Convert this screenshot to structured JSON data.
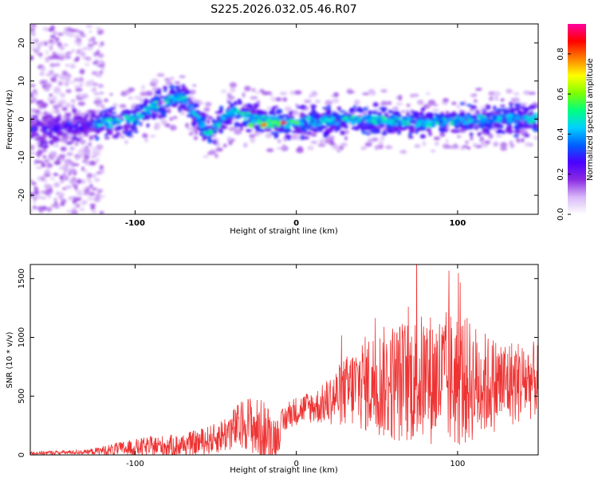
{
  "title": "S225.2026.032.05.46.R07",
  "chart_data": [
    {
      "type": "heatmap",
      "xlabel": "Height of straight line (km)",
      "ylabel": "Frequency (Hz)",
      "xlim": [
        -165,
        150
      ],
      "ylim": [
        -25,
        25
      ],
      "x_ticks": [
        -100,
        0,
        100
      ],
      "y_ticks": [
        20,
        10,
        0,
        -10,
        -20
      ],
      "colorbar": {
        "label": "Normalized spectral amplitude",
        "range": [
          0,
          0.95
        ],
        "ticks": [
          "0.0",
          "0.2",
          "0.4",
          "0.6",
          "0.8"
        ],
        "colors": [
          "#ffffff",
          "#d8b8f8",
          "#8a2be2",
          "#4b00ff",
          "#0060ff",
          "#00d0ff",
          "#00ff80",
          "#80ff00",
          "#ffff00",
          "#ff8000",
          "#ff0000",
          "#ff00a0"
        ]
      },
      "band_center_hz": [
        {
          "x": -160,
          "f": -3
        },
        {
          "x": -120,
          "f": -1
        },
        {
          "x": -100,
          "f": 0
        },
        {
          "x": -85,
          "f": 4
        },
        {
          "x": -70,
          "f": 6
        },
        {
          "x": -55,
          "f": -4
        },
        {
          "x": -40,
          "f": 2
        },
        {
          "x": -25,
          "f": 0
        },
        {
          "x": -10,
          "f": -1
        },
        {
          "x": 0,
          "f": -1
        },
        {
          "x": 40,
          "f": 0
        },
        {
          "x": 80,
          "f": -1
        },
        {
          "x": 120,
          "f": 0
        },
        {
          "x": 150,
          "f": 0
        }
      ],
      "hot_spots": [
        {
          "x": -20,
          "f": -1.5,
          "amplitude": 0.85
        },
        {
          "x": -8,
          "f": -1,
          "amplitude": 0.9
        }
      ]
    },
    {
      "type": "line",
      "xlabel": "Height of straight line (km)",
      "ylabel": "SNR (10 * v/v)",
      "xlim": [
        -165,
        150
      ],
      "ylim": [
        0,
        1620
      ],
      "x_ticks": [
        -100,
        0,
        100
      ],
      "y_ticks": [
        0,
        500,
        1000,
        1500
      ],
      "line_color": "#ee3333",
      "envelope": [
        {
          "x": -165,
          "mean": 15,
          "amp": 15
        },
        {
          "x": -130,
          "mean": 25,
          "amp": 20
        },
        {
          "x": -110,
          "mean": 50,
          "amp": 60
        },
        {
          "x": -90,
          "mean": 70,
          "amp": 90
        },
        {
          "x": -70,
          "mean": 80,
          "amp": 100
        },
        {
          "x": -50,
          "mean": 140,
          "amp": 130
        },
        {
          "x": -30,
          "mean": 280,
          "amp": 230
        },
        {
          "x": -20,
          "mean": 170,
          "amp": 300
        },
        {
          "x": -12,
          "mean": 160,
          "amp": 160
        },
        {
          "x": -5,
          "mean": 350,
          "amp": 120
        },
        {
          "x": 5,
          "mean": 400,
          "amp": 130
        },
        {
          "x": 15,
          "mean": 420,
          "amp": 160
        },
        {
          "x": 25,
          "mean": 500,
          "amp": 250
        },
        {
          "x": 40,
          "mean": 600,
          "amp": 400
        },
        {
          "x": 60,
          "mean": 620,
          "amp": 520
        },
        {
          "x": 80,
          "mean": 650,
          "amp": 560
        },
        {
          "x": 100,
          "mean": 640,
          "amp": 600
        },
        {
          "x": 120,
          "mean": 600,
          "amp": 420
        },
        {
          "x": 150,
          "mean": 640,
          "amp": 320
        }
      ]
    }
  ]
}
